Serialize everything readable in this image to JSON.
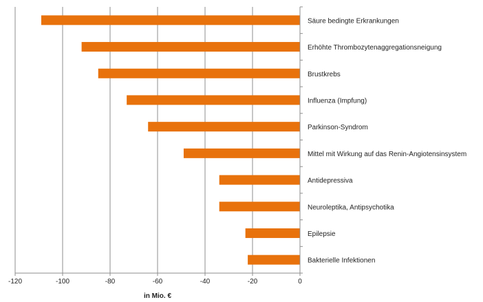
{
  "chart_data": {
    "type": "bar",
    "orientation": "horizontal",
    "categories": [
      "Säure bedingte Erkrankungen",
      "Erhöhte Thrombozytenaggregationsneigung",
      "Brustkrebs",
      "Influenza (Impfung)",
      "Parkinson-Syndrom",
      "Mittel mit Wirkung auf das Renin-Angiotensinsystem",
      "Antidepressiva",
      "Neuroleptika, Antipsychotika",
      "Epilepsie",
      "Bakterielle Infektionen"
    ],
    "values": [
      -109,
      -92,
      -85,
      -73,
      -64,
      -49,
      -34,
      -34,
      -23,
      -22
    ],
    "xlabel": "in Mio. €",
    "ylabel": "",
    "xlim": [
      -120,
      0
    ],
    "xticks": [
      "-120",
      "-100",
      "-80",
      "-60",
      "-40",
      "-20",
      "0"
    ],
    "grid": "vertical",
    "colors": {
      "bar": "#E8720C",
      "grid": "#8c8c8c",
      "axis": "#8c8c8c"
    }
  }
}
